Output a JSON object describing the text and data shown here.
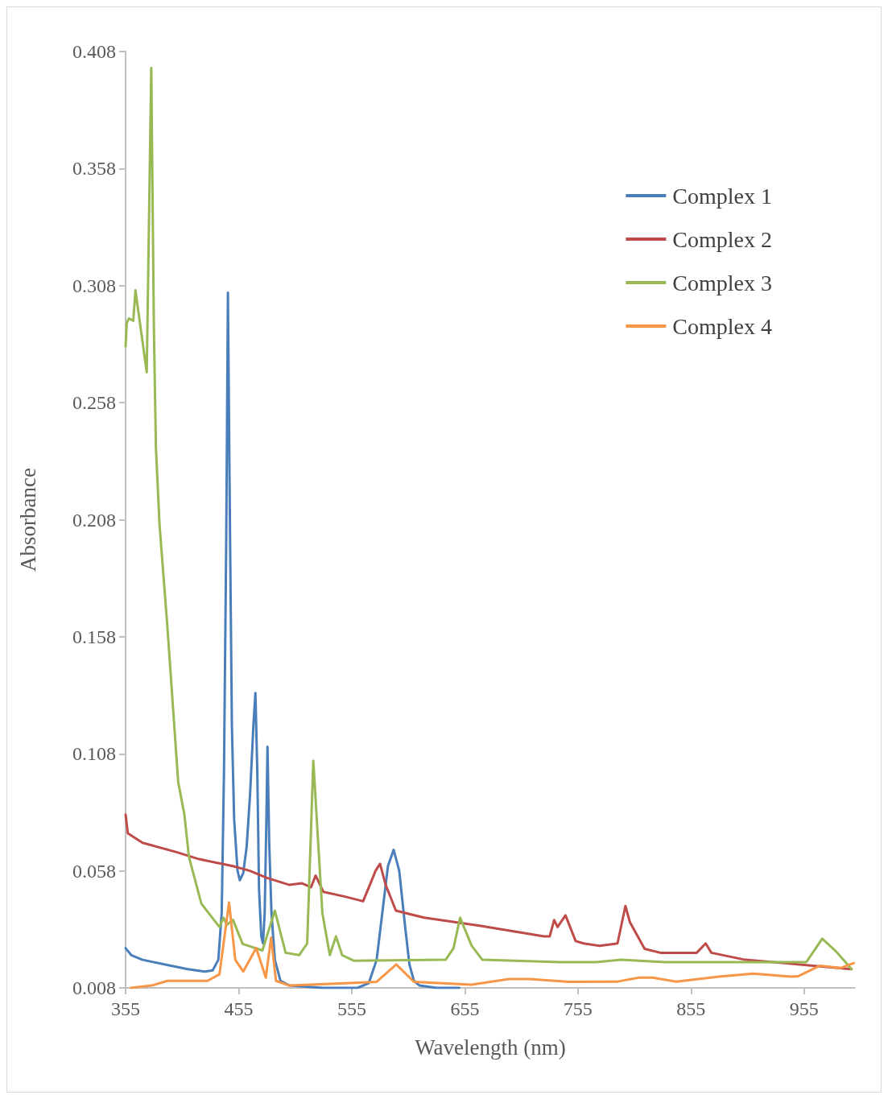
{
  "chart_data": {
    "type": "line",
    "xlabel": "Wavelength (nm)",
    "ylabel": "Absorbance",
    "xlim": [
      355,
      1000
    ],
    "xticks": [
      355,
      455,
      555,
      655,
      755,
      855,
      955
    ],
    "ylim": [
      0.008,
      0.408
    ],
    "yticks": [
      0.008,
      0.058,
      0.108,
      0.158,
      0.208,
      0.258,
      0.308,
      0.358,
      0.408
    ],
    "grid": false,
    "legend": "top right",
    "marker": "none",
    "line_style": "solid",
    "series": [
      {
        "name": "Complex 1",
        "color": "#4a7ebb",
        "x": [
          355,
          360,
          370,
          390,
          410,
          425,
          432,
          437,
          440,
          442,
          444,
          445.5,
          447,
          449,
          451,
          454,
          456,
          459,
          462,
          465,
          468,
          469.8,
          471.5,
          473,
          475,
          476.5,
          478,
          479.5,
          480.5,
          482,
          484,
          487,
          492,
          500,
          530,
          560,
          570,
          577,
          582,
          587,
          592,
          597,
          602,
          606,
          610,
          615,
          630,
          650
        ],
        "values": [
          0.025,
          0.022,
          0.02,
          0.018,
          0.016,
          0.015,
          0.0155,
          0.02,
          0.04,
          0.1,
          0.2,
          0.305,
          0.22,
          0.12,
          0.08,
          0.058,
          0.054,
          0.057,
          0.068,
          0.09,
          0.12,
          0.134,
          0.1,
          0.05,
          0.03,
          0.027,
          0.04,
          0.08,
          0.111,
          0.07,
          0.04,
          0.02,
          0.011,
          0.009,
          0.008,
          0.008,
          0.01,
          0.02,
          0.04,
          0.06,
          0.067,
          0.058,
          0.035,
          0.018,
          0.011,
          0.009,
          0.008,
          0.008
        ]
      },
      {
        "name": "Complex 2",
        "color": "#be4b48",
        "x": [
          355,
          357,
          370,
          400,
          420,
          450,
          465,
          480,
          500,
          511,
          519,
          523,
          530,
          549,
          565,
          571,
          576,
          580,
          585,
          594,
          619,
          668,
          725,
          730,
          734,
          737,
          744,
          753,
          760,
          774,
          790,
          797,
          801,
          814,
          828,
          860,
          868,
          873,
          903,
          938,
          973,
          997
        ],
        "values": [
          0.082,
          0.074,
          0.07,
          0.066,
          0.063,
          0.06,
          0.058,
          0.055,
          0.052,
          0.0527,
          0.051,
          0.056,
          0.049,
          0.047,
          0.045,
          0.052,
          0.058,
          0.061,
          0.052,
          0.041,
          0.038,
          0.0346,
          0.03,
          0.03,
          0.037,
          0.034,
          0.039,
          0.028,
          0.027,
          0.026,
          0.027,
          0.043,
          0.036,
          0.0247,
          0.023,
          0.023,
          0.027,
          0.023,
          0.02,
          0.0186,
          0.017,
          0.016
        ]
      },
      {
        "name": "Complex 3",
        "color": "#98b954",
        "x": [
          355,
          356,
          358,
          361.8,
          363.7,
          373.7,
          377.7,
          380,
          381.8,
          385,
          392,
          401.5,
          407,
          411,
          422,
          438,
          441.6,
          444.6,
          450,
          458.5,
          476,
          487,
          496.5,
          508.5,
          515.6,
          521,
          529,
          535.6,
          541,
          546.5,
          557,
          638,
          645,
          650.8,
          661,
          670.5,
          739,
          771,
          793,
          832,
          860,
          903,
          957,
          971,
          983,
          997
        ],
        "values": [
          0.282,
          0.292,
          0.294,
          0.293,
          0.306,
          0.271,
          0.401,
          0.291,
          0.239,
          0.206,
          0.162,
          0.096,
          0.082,
          0.064,
          0.044,
          0.034,
          0.038,
          0.035,
          0.037,
          0.0268,
          0.024,
          0.041,
          0.023,
          0.022,
          0.027,
          0.105,
          0.04,
          0.022,
          0.03,
          0.022,
          0.0196,
          0.02,
          0.025,
          0.038,
          0.026,
          0.02,
          0.019,
          0.019,
          0.02,
          0.019,
          0.019,
          0.019,
          0.019,
          0.029,
          0.0237,
          0.016
        ]
      },
      {
        "name": "Complex 4",
        "color": "#f79646",
        "x": [
          359.6,
          378,
          392,
          427.5,
          438,
          446.5,
          452,
          459,
          470.5,
          479,
          483.7,
          488,
          500,
          549,
          577,
          594.4,
          610,
          661,
          694,
          712,
          747,
          790,
          809,
          821,
          842,
          879.6,
          910,
          943,
          950,
          969,
          987,
          999
        ],
        "values": [
          0.008,
          0.009,
          0.011,
          0.011,
          0.0138,
          0.0445,
          0.02,
          0.015,
          0.025,
          0.0124,
          0.0295,
          0.011,
          0.009,
          0.01,
          0.0106,
          0.018,
          0.0106,
          0.0094,
          0.0118,
          0.0118,
          0.0106,
          0.0107,
          0.0124,
          0.0124,
          0.0107,
          0.0128,
          0.0141,
          0.0128,
          0.013,
          0.0175,
          0.0165,
          0.0186
        ]
      }
    ]
  }
}
